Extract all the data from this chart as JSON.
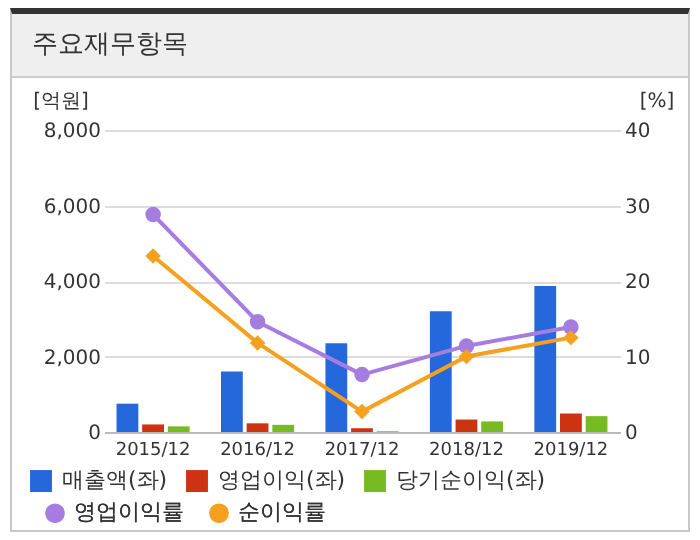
{
  "chart_data": {
    "type": "bar",
    "title": "주요재무항목",
    "ylabel": "[억원]",
    "y2label": "[%]",
    "categories": [
      "2015/12",
      "2016/12",
      "2017/12",
      "2018/12",
      "2019/12"
    ],
    "series": [
      {
        "name": "매출액(좌)",
        "color": "#2468dc",
        "values": [
          750,
          1600,
          2350,
          3200,
          3870
        ]
      },
      {
        "name": "영업이익(좌)",
        "color": "#cc3311",
        "values": [
          200,
          230,
          100,
          330,
          490
        ]
      },
      {
        "name": "당기순이익(좌)",
        "color": "#77bb22",
        "values": [
          150,
          190,
          20,
          280,
          420
        ]
      },
      {
        "name": "영업이익률",
        "type": "line",
        "axis": "y2",
        "color": "#a57de0",
        "marker": "circle",
        "values": [
          28.8,
          14.6,
          7.6,
          11.4,
          13.9
        ]
      },
      {
        "name": "순이익률",
        "type": "line",
        "axis": "y2",
        "color": "#f5a01e",
        "marker": "diamond",
        "values": [
          23.3,
          11.8,
          2.7,
          10.0,
          12.5
        ]
      }
    ],
    "ylim": [
      0,
      8000
    ],
    "yticks": [
      0,
      {
        "value": 2000,
        "label": "2,000"
      },
      {
        "value": 4000,
        "label": "4,000"
      },
      {
        "value": 6000,
        "label": "6,000"
      },
      {
        "value": 8000,
        "label": "8,000"
      }
    ],
    "y2lim": [
      0,
      40
    ],
    "y2ticks": [
      0,
      10,
      20,
      30,
      40
    ],
    "grid": "y",
    "legend": "bottom"
  }
}
